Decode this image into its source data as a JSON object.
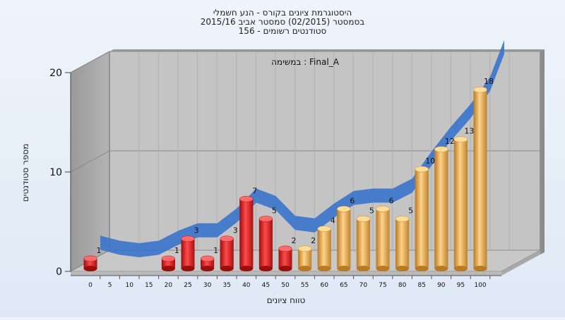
{
  "chart_data": {
    "type": "bar",
    "title_lines": [
      "היסטוגרמת ציונים בקורס - הנע חשמלי",
      "בסמסטר  (02/2015)  סמסטר אביב 2015/16",
      "סטודנטים רשומים - 156"
    ],
    "annotation": "במשימה : Final_A",
    "xlabel": "טווח ציונים",
    "ylabel": "מספר סטודנטים",
    "ylim": [
      0,
      20
    ],
    "y_ticks": [
      "0",
      "10",
      "20"
    ],
    "categories": [
      "0",
      "5",
      "10",
      "15",
      "20",
      "25",
      "30",
      "35",
      "40",
      "45",
      "50",
      "55",
      "60",
      "65",
      "70",
      "75",
      "80",
      "85",
      "90",
      "95",
      "100"
    ],
    "values": [
      1,
      0,
      0,
      0,
      1,
      3,
      1,
      3,
      7,
      5,
      2,
      2,
      4,
      6,
      5,
      6,
      5,
      10,
      12,
      13,
      18
    ],
    "bar_colors": {
      "fail": "#d81e1e",
      "pass": "#e8a84c",
      "trend": "#3a74cc"
    },
    "pass_threshold": "55",
    "grid": true
  }
}
